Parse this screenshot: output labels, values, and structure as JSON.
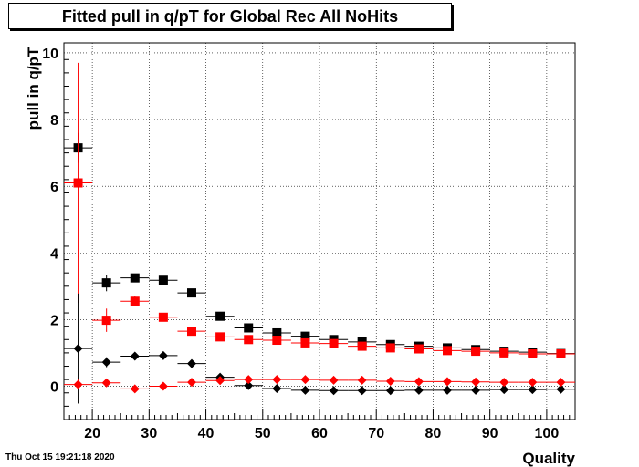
{
  "title": "Fitted pull in q/pT for Global Rec All NoHits",
  "timestamp": "Thu Oct 15 19:21:18 2020",
  "chart_data": {
    "type": "scatter",
    "title": "Fitted pull in q/pT for Global Rec All NoHits",
    "xlabel": "Quality",
    "ylabel": "pull in q/pT",
    "xlim": [
      15,
      105
    ],
    "ylim": [
      -1,
      10.3
    ],
    "xticks": [
      20,
      30,
      40,
      50,
      60,
      70,
      80,
      90,
      100
    ],
    "yticks": [
      0,
      2,
      4,
      6,
      8,
      10
    ],
    "grid": true,
    "bin_width": 5,
    "x": [
      17.5,
      22.5,
      27.5,
      32.5,
      37.5,
      42.5,
      47.5,
      52.5,
      57.5,
      62.5,
      67.5,
      72.5,
      77.5,
      82.5,
      87.5,
      92.5,
      97.5,
      102.5
    ],
    "series": [
      {
        "color": "#000000",
        "marker": "square",
        "values": [
          7.15,
          3.1,
          3.25,
          3.18,
          2.8,
          2.1,
          1.75,
          1.6,
          1.5,
          1.4,
          1.33,
          1.25,
          1.2,
          1.15,
          1.1,
          1.05,
          1.02,
          0.98
        ],
        "errors": [
          0.45,
          0.25,
          0.1,
          0.08,
          0.06,
          0.05,
          0.04,
          0.04,
          0.03,
          0.03,
          0.03,
          0.03,
          0.03,
          0.03,
          0.03,
          0.03,
          0.03,
          0.03
        ]
      },
      {
        "color": "#ff0000",
        "marker": "square",
        "values": [
          6.1,
          1.98,
          2.55,
          2.07,
          1.65,
          1.48,
          1.4,
          1.38,
          1.3,
          1.28,
          1.2,
          1.15,
          1.12,
          1.07,
          1.05,
          1.0,
          0.97,
          0.97
        ],
        "errors": [
          3.6,
          0.35,
          0.15,
          0.1,
          0.07,
          0.05,
          0.04,
          0.04,
          0.03,
          0.03,
          0.03,
          0.03,
          0.03,
          0.03,
          0.03,
          0.03,
          0.03,
          0.03
        ]
      },
      {
        "color": "#000000",
        "marker": "diamond",
        "values": [
          1.13,
          0.72,
          0.9,
          0.92,
          0.68,
          0.27,
          0.02,
          -0.07,
          -0.12,
          -0.13,
          -0.13,
          -0.13,
          -0.12,
          -0.12,
          -0.12,
          -0.1,
          -0.1,
          -0.09
        ],
        "errors": [
          1.65,
          0.15,
          0.08,
          0.06,
          0.05,
          0.04,
          0.03,
          0.03,
          0.03,
          0.03,
          0.03,
          0.03,
          0.03,
          0.03,
          0.03,
          0.03,
          0.03,
          0.03
        ]
      },
      {
        "color": "#ff0000",
        "marker": "diamond",
        "values": [
          0.05,
          0.1,
          -0.08,
          0.0,
          0.12,
          0.17,
          0.2,
          0.2,
          0.2,
          0.18,
          0.18,
          0.15,
          0.14,
          0.14,
          0.13,
          0.12,
          0.12,
          0.12
        ],
        "errors": [
          0.15,
          0.08,
          0.06,
          0.05,
          0.04,
          0.03,
          0.03,
          0.03,
          0.03,
          0.03,
          0.03,
          0.03,
          0.03,
          0.03,
          0.03,
          0.03,
          0.03,
          0.03
        ]
      }
    ]
  }
}
